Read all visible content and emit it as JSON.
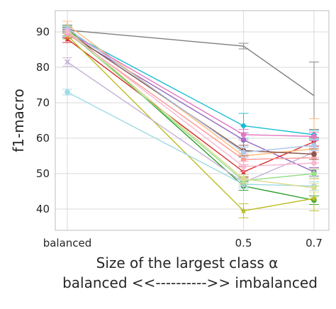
{
  "chart_data": {
    "type": "line",
    "categories": [
      "balanced",
      "0.5",
      "0.7"
    ],
    "x": [
      0,
      0.5,
      0.7
    ],
    "ylim": [
      34,
      96
    ],
    "yticks": [
      40,
      50,
      60,
      70,
      80,
      90
    ],
    "ytick_labels": [
      "40",
      "50",
      "60",
      "70",
      "80",
      "90"
    ],
    "xtick_labels": [
      "balanced",
      "0.5",
      "0.7"
    ],
    "ylabel": "f1-macro",
    "xlabel_line1": "Size of the largest class α",
    "xlabel_line2": "balanced <<---------->> imbalanced",
    "grid": true,
    "legend": "none",
    "series": [
      {
        "color": "#7f7f7f",
        "marker": "errorbar",
        "values": [
          90.5,
          86.0,
          72.0
        ],
        "errors": [
          0.8,
          0.8,
          9.5
        ]
      },
      {
        "color": "#17becf",
        "marker": "diamond",
        "values": [
          90.0,
          63.5,
          61.0
        ],
        "errors": [
          1.2,
          3.5,
          1.2
        ]
      },
      {
        "color": "#9467bd",
        "marker": "circle",
        "values": [
          89.5,
          59.5,
          50.5
        ],
        "errors": [
          1.2,
          2.0,
          1.2
        ]
      },
      {
        "color": "#d62728",
        "marker": "star",
        "values": [
          88.0,
          50.5,
          59.0
        ],
        "errors": [
          1.0,
          1.5,
          1.2
        ]
      },
      {
        "color": "#2ca02c",
        "marker": "circle",
        "values": [
          91.0,
          46.5,
          42.5
        ],
        "errors": [
          0.8,
          1.2,
          1.2
        ]
      },
      {
        "color": "#bcbd22",
        "marker": "star",
        "values": [
          89.0,
          39.5,
          43.0
        ],
        "errors": [
          1.0,
          2.0,
          3.5
        ]
      },
      {
        "color": "#9edae5",
        "marker": "circle",
        "values": [
          73.0,
          47.0,
          46.5
        ],
        "errors": [
          0.8,
          1.2,
          1.2
        ]
      },
      {
        "color": "#c5b0d5",
        "marker": "cross",
        "values": [
          81.5,
          47.5,
          56.0
        ],
        "errors": [
          1.2,
          1.2,
          1.5
        ]
      },
      {
        "color": "#ffbb78",
        "marker": "plus",
        "values": [
          92.0,
          55.0,
          57.0
        ],
        "errors": [
          1.0,
          1.5,
          8.5
        ]
      },
      {
        "color": "#e377c2",
        "marker": "circle",
        "values": [
          90.0,
          61.0,
          60.5
        ],
        "errors": [
          1.0,
          1.5,
          1.2
        ]
      },
      {
        "color": "#ff9896",
        "marker": "circle",
        "values": [
          89.5,
          54.0,
          54.5
        ],
        "errors": [
          1.0,
          1.5,
          1.5
        ]
      },
      {
        "color": "#8c564b",
        "marker": "circle",
        "values": [
          90.0,
          56.5,
          55.5
        ],
        "errors": [
          1.0,
          1.5,
          1.5
        ]
      },
      {
        "color": "#98df8a",
        "marker": "circle",
        "values": [
          90.0,
          48.0,
          50.0
        ],
        "errors": [
          1.0,
          1.2,
          1.2
        ]
      },
      {
        "color": "#dbdb8d",
        "marker": "circle",
        "values": [
          90.5,
          48.5,
          46.0
        ],
        "errors": [
          1.0,
          1.2,
          1.2
        ]
      },
      {
        "color": "#aec7e8",
        "marker": "circle",
        "values": [
          91.0,
          56.0,
          58.0
        ],
        "errors": [
          1.0,
          1.5,
          1.5
        ]
      },
      {
        "color": "#f7b6d2",
        "marker": "circle",
        "values": [
          90.0,
          52.0,
          53.0
        ],
        "errors": [
          1.0,
          1.5,
          1.5
        ]
      }
    ]
  }
}
